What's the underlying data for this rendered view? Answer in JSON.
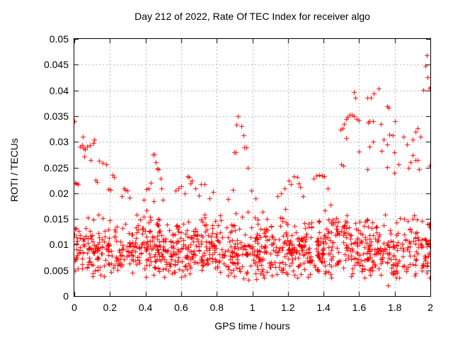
{
  "chart_data": {
    "type": "scatter",
    "title": "Day 212 of 2022, Rate Of TEC Index for receiver algo",
    "xlabel": "GPS time / hours",
    "ylabel": "ROTI / TECUs",
    "xlim": [
      0,
      2
    ],
    "ylim": [
      0,
      0.05
    ],
    "x_ticks": [
      0,
      0.2,
      0.4,
      0.6,
      0.8,
      1,
      1.2,
      1.4,
      1.6,
      1.8,
      2
    ],
    "x_tick_labels": [
      "0",
      "0.2",
      "0.4",
      "0.6",
      "0.8",
      "1",
      "1.2",
      "1.4",
      "1.6",
      "1.8",
      "2"
    ],
    "y_ticks": [
      0,
      0.005,
      0.01,
      0.015,
      0.02,
      0.025,
      0.03,
      0.035,
      0.04,
      0.045,
      0.05
    ],
    "y_tick_labels": [
      "0",
      "0.005",
      "0.01",
      "0.015",
      "0.02",
      "0.025",
      "0.03",
      "0.035",
      "0.04",
      "0.045",
      "0.05"
    ],
    "grid": true,
    "legend_position": "none",
    "marker": "plus",
    "marker_size_px": 7,
    "marker_color": "#ff0000",
    "grid_color": "#b0b0b0",
    "border_color": "#000000",
    "background_color": "#ffffff",
    "points": [
      [
        0.0,
        0.034
      ],
      [
        0.049,
        0.031
      ],
      [
        0.112,
        0.0305
      ],
      [
        0.033,
        0.029
      ],
      [
        0.043,
        0.0293
      ],
      [
        0.052,
        0.0288
      ],
      [
        0.061,
        0.0285
      ],
      [
        0.07,
        0.0291
      ],
      [
        0.086,
        0.0294
      ],
      [
        0.106,
        0.0298
      ],
      [
        0.057,
        0.0272
      ],
      [
        0.093,
        0.0265
      ],
      [
        0.139,
        0.0263
      ],
      [
        0.159,
        0.0259
      ],
      [
        0.179,
        0.0256
      ],
      [
        0.216,
        0.0235
      ],
      [
        0.119,
        0.0226
      ],
      [
        0.128,
        0.0222
      ],
      [
        0.004,
        0.0221
      ],
      [
        0.012,
        0.0219
      ],
      [
        0.02,
        0.0217
      ],
      [
        0.192,
        0.0208
      ],
      [
        0.203,
        0.0206
      ],
      [
        0.223,
        0.0231
      ],
      [
        0.278,
        0.021
      ],
      [
        0.288,
        0.0207
      ],
      [
        0.298,
        0.0205
      ],
      [
        0.265,
        0.0194
      ],
      [
        0.311,
        0.0192
      ],
      [
        0.391,
        0.0187
      ],
      [
        0.441,
        0.0276
      ],
      [
        0.449,
        0.0275
      ],
      [
        0.457,
        0.0261
      ],
      [
        0.464,
        0.0248
      ],
      [
        0.474,
        0.0246
      ],
      [
        0.484,
        0.0228
      ],
      [
        0.43,
        0.0221
      ],
      [
        0.417,
        0.021
      ],
      [
        0.404,
        0.0208
      ],
      [
        0.49,
        0.021
      ],
      [
        0.497,
        0.0188
      ],
      [
        0.57,
        0.0205
      ],
      [
        0.585,
        0.021
      ],
      [
        0.6,
        0.0213
      ],
      [
        0.62,
        0.02
      ],
      [
        0.636,
        0.0233
      ],
      [
        0.645,
        0.0231
      ],
      [
        0.653,
        0.0219
      ],
      [
        0.71,
        0.0217
      ],
      [
        0.66,
        0.0224
      ],
      [
        0.68,
        0.0209
      ],
      [
        0.7,
        0.0196
      ],
      [
        0.73,
        0.0218
      ],
      [
        0.76,
        0.019
      ],
      [
        0.78,
        0.0203
      ],
      [
        0.92,
        0.035
      ],
      [
        0.91,
        0.0334
      ],
      [
        0.94,
        0.033
      ],
      [
        0.95,
        0.0312
      ],
      [
        0.955,
        0.0289
      ],
      [
        0.965,
        0.0289
      ],
      [
        0.9,
        0.028
      ],
      [
        0.907,
        0.0279
      ],
      [
        0.975,
        0.025
      ],
      [
        0.974,
        0.0249
      ],
      [
        0.89,
        0.0206
      ],
      [
        0.994,
        0.0205
      ],
      [
        1.14,
        0.0194
      ],
      [
        1.16,
        0.02
      ],
      [
        1.18,
        0.021
      ],
      [
        1.206,
        0.0224
      ],
      [
        1.215,
        0.0218
      ],
      [
        1.232,
        0.0233
      ],
      [
        1.253,
        0.0231
      ],
      [
        1.259,
        0.0219
      ],
      [
        1.27,
        0.0212
      ],
      [
        1.286,
        0.0194
      ],
      [
        1.345,
        0.0228
      ],
      [
        1.36,
        0.0234
      ],
      [
        1.375,
        0.0235
      ],
      [
        1.39,
        0.0234
      ],
      [
        1.405,
        0.0233
      ],
      [
        1.425,
        0.021
      ],
      [
        1.438,
        0.0178
      ],
      [
        1.495,
        0.0324
      ],
      [
        1.505,
        0.0327
      ],
      [
        1.515,
        0.0335
      ],
      [
        1.525,
        0.0344
      ],
      [
        1.535,
        0.0349
      ],
      [
        1.545,
        0.0352
      ],
      [
        1.56,
        0.0352
      ],
      [
        1.57,
        0.035
      ],
      [
        1.585,
        0.0345
      ],
      [
        1.6,
        0.0342
      ],
      [
        1.57,
        0.0397
      ],
      [
        1.579,
        0.0386
      ],
      [
        1.645,
        0.0386
      ],
      [
        1.667,
        0.0386
      ],
      [
        1.68,
        0.0394
      ],
      [
        1.71,
        0.0404
      ],
      [
        1.756,
        0.0369
      ],
      [
        1.764,
        0.0367
      ],
      [
        1.65,
        0.0337
      ],
      [
        1.66,
        0.034
      ],
      [
        1.677,
        0.034
      ],
      [
        1.72,
        0.0335
      ],
      [
        1.8,
        0.034
      ],
      [
        1.525,
        0.0307
      ],
      [
        1.66,
        0.029
      ],
      [
        1.677,
        0.03
      ],
      [
        1.6,
        0.0281
      ],
      [
        1.727,
        0.0283
      ],
      [
        1.736,
        0.0304
      ],
      [
        1.756,
        0.0295
      ],
      [
        1.77,
        0.0314
      ],
      [
        1.79,
        0.0313
      ],
      [
        1.796,
        0.0279
      ],
      [
        1.5,
        0.0256
      ],
      [
        1.51,
        0.0254
      ],
      [
        1.646,
        0.0247
      ],
      [
        1.756,
        0.0251
      ],
      [
        1.796,
        0.024
      ],
      [
        1.82,
        0.0256
      ],
      [
        1.876,
        0.0249
      ],
      [
        1.935,
        0.0247
      ],
      [
        1.9,
        0.0304
      ],
      [
        1.915,
        0.032
      ],
      [
        1.93,
        0.0327
      ],
      [
        1.945,
        0.031
      ],
      [
        1.96,
        0.0401
      ],
      [
        1.971,
        0.0448
      ],
      [
        1.982,
        0.0469
      ],
      [
        1.985,
        0.0426
      ],
      [
        1.995,
        0.0404
      ],
      [
        2.0,
        0.0406
      ],
      [
        1.9,
        0.0274
      ],
      [
        1.915,
        0.0265
      ],
      [
        1.93,
        0.0264
      ],
      [
        1.995,
        0.0254
      ],
      [
        1.85,
        0.031
      ],
      [
        1.87,
        0.0295
      ],
      [
        1.89,
        0.026
      ],
      [
        1.763,
        0.0021
      ],
      [
        0.98,
        0.0031
      ],
      [
        1.02,
        0.0033
      ],
      [
        0.95,
        0.0035
      ]
    ],
    "band_model": {
      "description": "dense noise band of ROTI values covering all x, estimated from pixel density",
      "count": 1150,
      "seed": 20220731,
      "x_range": [
        0,
        2
      ],
      "y_base": 0.0035,
      "y_spread": 0.0135,
      "shape": 1.3,
      "tail_fraction": 0.1,
      "tail_extra": 0.006
    }
  }
}
